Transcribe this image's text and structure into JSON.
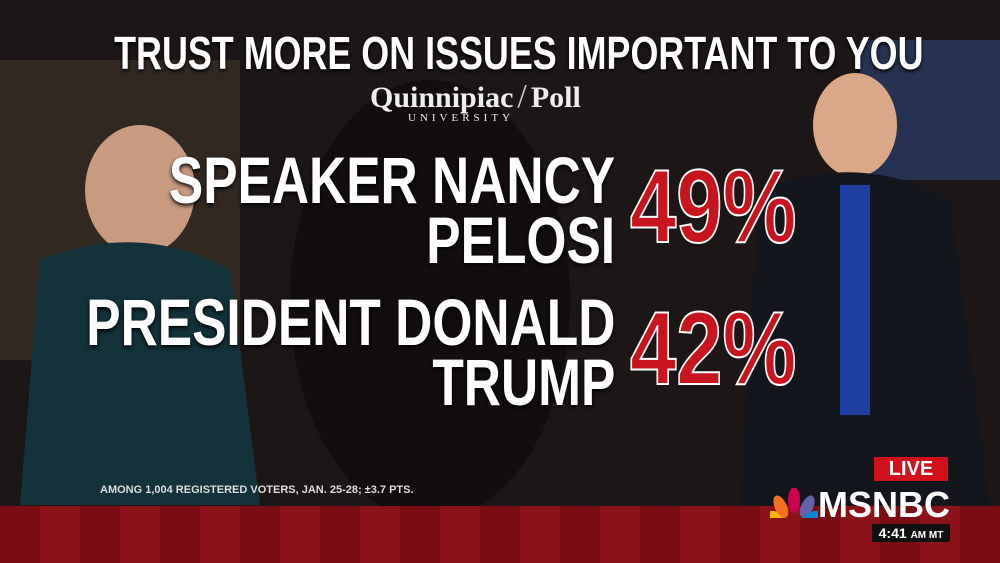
{
  "graphic": {
    "title": "TRUST MORE ON ISSUES IMPORTANT TO YOU",
    "source": {
      "name": "Quinnipiac",
      "poll": "Poll",
      "sub": "UNIVERSITY"
    },
    "rows": [
      {
        "name_lines": [
          "SPEAKER NANCY",
          "PELOSI"
        ],
        "percent": "49%"
      },
      {
        "name_lines": [
          "PRESIDENT DONALD",
          "TRUMP"
        ],
        "percent": "42%"
      }
    ],
    "footnote": "AMONG 1,004 REGISTERED VOTERS, JAN. 25-28; ±3.7 PTS."
  },
  "broadcast": {
    "live": "LIVE",
    "network": "MSNBC",
    "time": "4:41",
    "zone": "AM MT"
  }
}
